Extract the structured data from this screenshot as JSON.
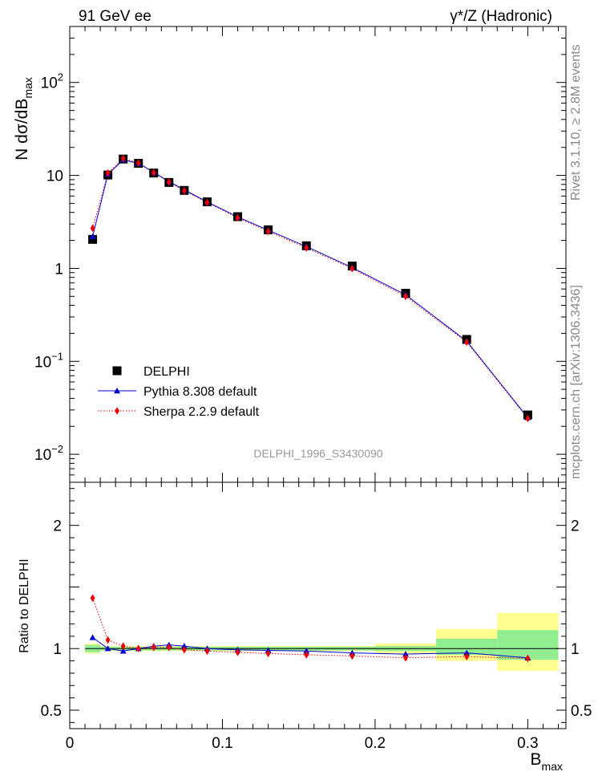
{
  "header": {
    "left": "91 GeV ee",
    "right": "γ*/Z (Hadronic)"
  },
  "side_text": {
    "top": "Rivet 3.1.10, ≥ 2.8M events",
    "bottom": "mcplots.cern.ch [arXiv:1306.3436]"
  },
  "watermark": "DELPHI_1996_S3430090",
  "chart_data": [
    {
      "type": "scatter",
      "panel": "main",
      "ylabel": "N dσ/dB_max",
      "yscale": "log",
      "ylim": [
        0.005,
        400
      ],
      "xlim": [
        0,
        0.325
      ],
      "ytick_values": [
        0.01,
        0.1,
        1,
        10,
        100
      ],
      "ytick_labels": [
        {
          "base": "10",
          "exp": "−2"
        },
        {
          "base": "10",
          "exp": "−1"
        },
        {
          "base": "1",
          "exp": ""
        },
        {
          "base": "10",
          "exp": ""
        },
        {
          "base": "10",
          "exp": "2"
        }
      ],
      "legend_position": "bottom-left",
      "x": [
        0.015,
        0.025,
        0.035,
        0.045,
        0.055,
        0.065,
        0.075,
        0.09,
        0.11,
        0.13,
        0.155,
        0.185,
        0.22,
        0.26,
        0.3
      ],
      "series": [
        {
          "name": "DELPHI",
          "color": "#000000",
          "marker": "square",
          "values": [
            2.05,
            10.1,
            15.0,
            13.5,
            10.6,
            8.4,
            6.9,
            5.2,
            3.6,
            2.6,
            1.75,
            1.06,
            0.54,
            0.172,
            0.0265
          ]
        },
        {
          "name": "Pythia 8.308 default",
          "color": "#0000cc",
          "marker": "triangle",
          "values": [
            2.2,
            10.3,
            14.7,
            13.5,
            10.8,
            8.6,
            7.0,
            5.2,
            3.58,
            2.58,
            1.72,
            1.02,
            0.52,
            0.165,
            0.0248
          ]
        },
        {
          "name": "Sherpa 2.2.9 default",
          "color": "#ee0000",
          "marker": "diamond",
          "values": [
            2.7,
            10.6,
            15.2,
            13.6,
            10.7,
            8.5,
            6.85,
            5.12,
            3.5,
            2.5,
            1.66,
            0.995,
            0.5,
            0.161,
            0.0243
          ]
        }
      ]
    },
    {
      "type": "line",
      "panel": "ratio",
      "xlabel": "B_max",
      "ylabel": "Ratio to DELPHI",
      "ylim": [
        0.35,
        2.35
      ],
      "xlim": [
        0,
        0.325
      ],
      "ytick_labels": [
        "0.5",
        "1",
        "2"
      ],
      "ytick_values": [
        0.5,
        1,
        2
      ],
      "xtick_labels": [
        "0",
        "0.1",
        "0.2",
        "0.3"
      ],
      "xtick_values": [
        0,
        0.1,
        0.2,
        0.3
      ],
      "x": [
        0.015,
        0.025,
        0.035,
        0.045,
        0.055,
        0.065,
        0.075,
        0.09,
        0.11,
        0.13,
        0.155,
        0.185,
        0.22,
        0.26,
        0.3
      ],
      "series": [
        {
          "name": "Pythia 8.308 default",
          "color": "#0000cc",
          "marker": "triangle",
          "values": [
            1.09,
            1.0,
            0.98,
            1.0,
            1.02,
            1.03,
            1.02,
            1.0,
            0.99,
            0.985,
            0.98,
            0.965,
            0.955,
            0.965,
            0.925
          ]
        },
        {
          "name": "Sherpa 2.2.9 default",
          "color": "#ee0000",
          "marker": "diamond",
          "values": [
            1.41,
            1.07,
            1.02,
            1.0,
            1.01,
            1.01,
            0.99,
            0.98,
            0.97,
            0.96,
            0.95,
            0.94,
            0.925,
            0.935,
            0.92
          ]
        }
      ],
      "uncertainty_bands": {
        "bin_edges": [
          0.01,
          0.02,
          0.03,
          0.04,
          0.05,
          0.06,
          0.07,
          0.08,
          0.1,
          0.12,
          0.14,
          0.17,
          0.2,
          0.24,
          0.28,
          0.32
        ],
        "stat_color": "#90ee90",
        "total_color": "#ffff90",
        "stat": [
          [
            0.97,
            1.03
          ],
          [
            0.985,
            1.015
          ],
          [
            0.985,
            1.015
          ],
          [
            0.985,
            1.015
          ],
          [
            0.985,
            1.015
          ],
          [
            0.985,
            1.015
          ],
          [
            0.985,
            1.015
          ],
          [
            0.985,
            1.015
          ],
          [
            0.985,
            1.015
          ],
          [
            0.985,
            1.015
          ],
          [
            0.985,
            1.015
          ],
          [
            0.985,
            1.015
          ],
          [
            0.98,
            1.02
          ],
          [
            0.95,
            1.08
          ],
          [
            0.91,
            1.15
          ]
        ],
        "total": [
          [
            0.96,
            1.04
          ],
          [
            0.98,
            1.02
          ],
          [
            0.98,
            1.02
          ],
          [
            0.98,
            1.02
          ],
          [
            0.98,
            1.02
          ],
          [
            0.98,
            1.02
          ],
          [
            0.98,
            1.02
          ],
          [
            0.98,
            1.02
          ],
          [
            0.98,
            1.02
          ],
          [
            0.98,
            1.02
          ],
          [
            0.98,
            1.02
          ],
          [
            0.98,
            1.02
          ],
          [
            0.96,
            1.04
          ],
          [
            0.9,
            1.16
          ],
          [
            0.82,
            1.29
          ]
        ]
      }
    }
  ]
}
